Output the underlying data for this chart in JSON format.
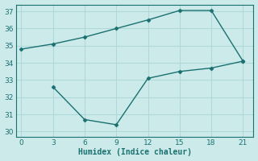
{
  "upper_x": [
    0,
    3,
    6,
    9,
    12,
    15,
    18,
    21
  ],
  "upper_y": [
    34.8,
    35.1,
    35.5,
    36.0,
    36.5,
    37.05,
    37.05,
    34.1
  ],
  "lower_x": [
    3,
    6,
    9,
    12,
    15,
    18,
    21
  ],
  "lower_y": [
    32.6,
    30.7,
    30.4,
    33.1,
    33.5,
    33.7,
    34.1
  ],
  "line_color": "#1a7070",
  "bg_color": "#cceaea",
  "grid_color": "#b0d8d8",
  "xlabel": "Humidex (Indice chaleur)",
  "xlim": [
    -0.5,
    22
  ],
  "ylim": [
    29.7,
    37.4
  ],
  "xticks": [
    0,
    3,
    6,
    9,
    12,
    15,
    18,
    21
  ],
  "yticks": [
    30,
    31,
    32,
    33,
    34,
    35,
    36,
    37
  ],
  "marker": "D",
  "markersize": 2.5,
  "linewidth": 1.0
}
